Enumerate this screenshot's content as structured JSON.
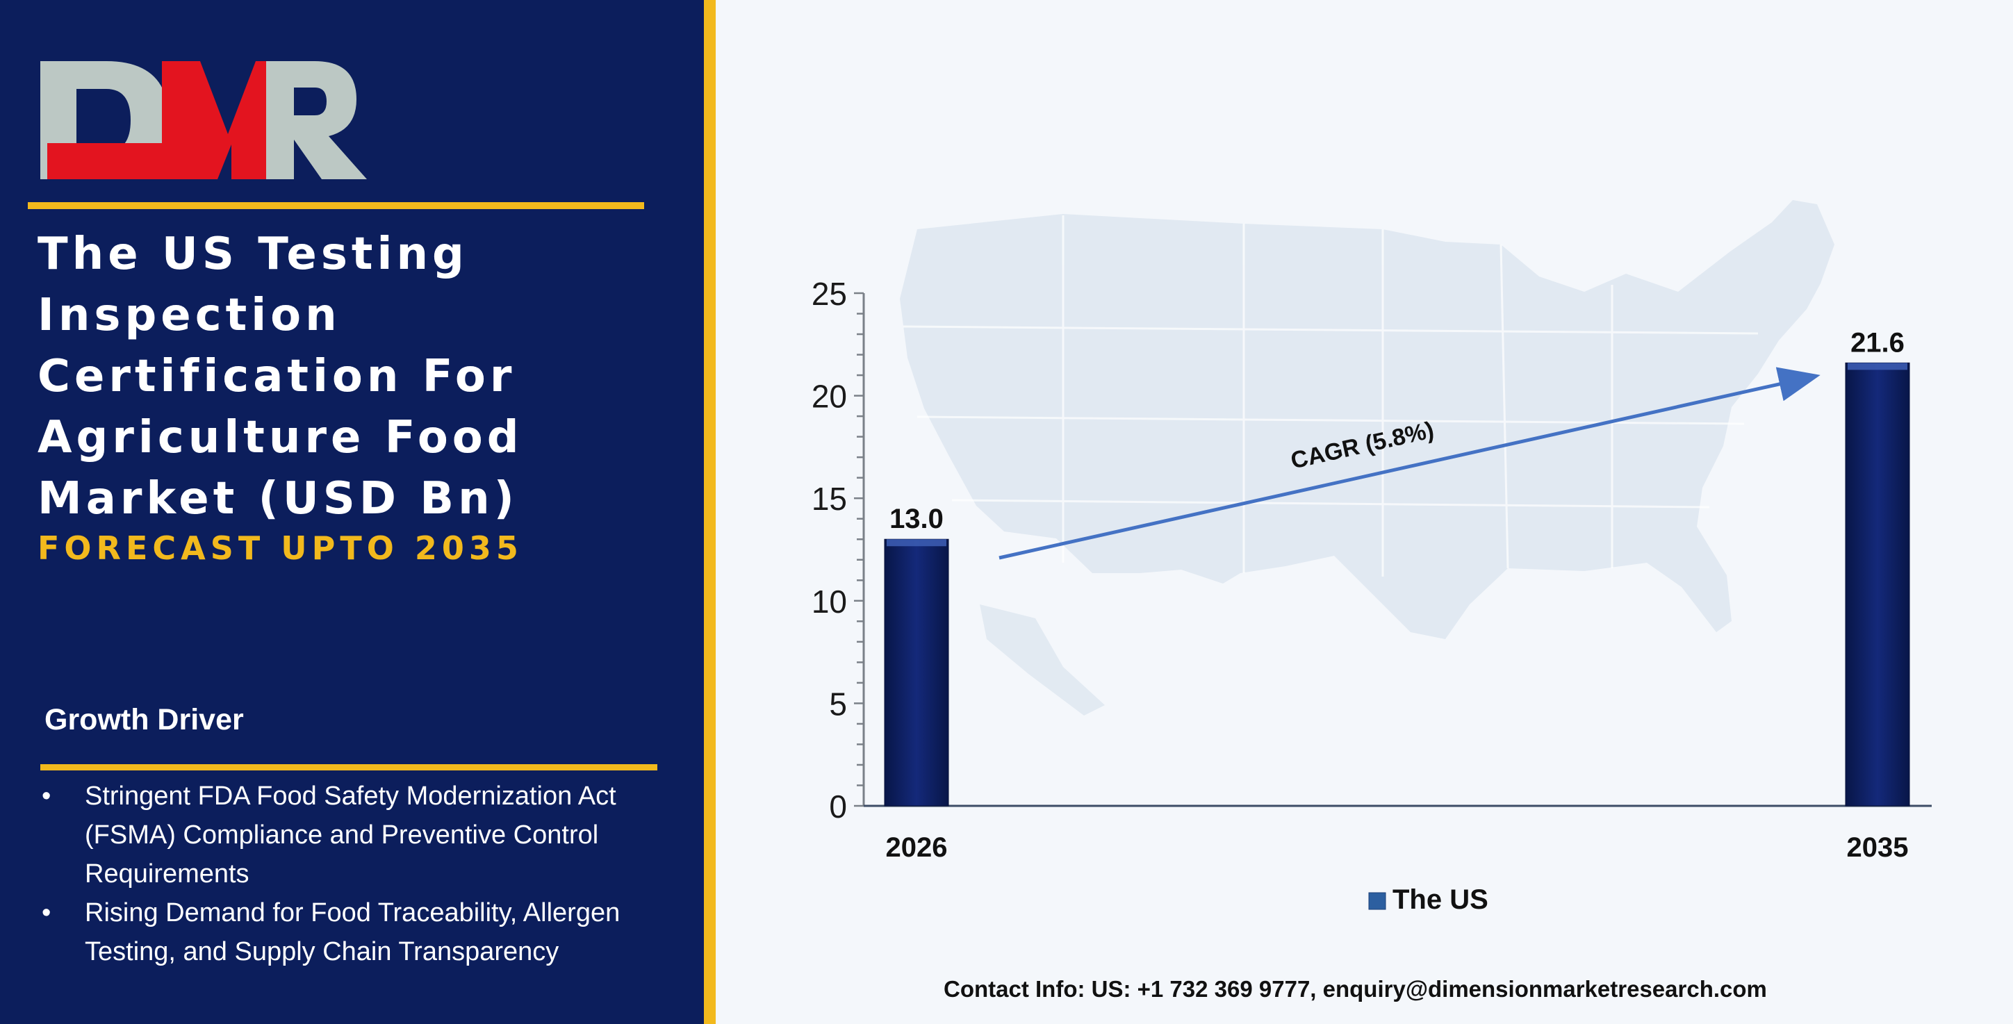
{
  "brand": {
    "logo_text": "DMR",
    "colors": {
      "navy": "#0c1e5c",
      "gold": "#f2b91d",
      "red": "#e3141f",
      "silver": "#bcc8c4"
    }
  },
  "header": {
    "title": "The US Testing\nInspection\nCertification For\nAgriculture Food\nMarket (USD Bn)",
    "subtitle": "FORECAST UPTO 2035"
  },
  "growth_drivers": {
    "heading": "Growth Driver",
    "items": [
      "Stringent FDA Food Safety Modernization Act (FSMA) Compliance and Preventive Control Requirements",
      "Rising Demand for Food Traceability, Allergen Testing, and Supply Chain Transparency"
    ]
  },
  "chart_data": {
    "type": "bar",
    "categories": [
      "2026",
      "2035"
    ],
    "series": [
      {
        "name": "The US",
        "values": [
          13.0,
          21.6
        ],
        "color": "#0c1e5c"
      }
    ],
    "value_labels": [
      "13.0",
      "21.6"
    ],
    "ylim": [
      0,
      25
    ],
    "yticks": [
      0,
      5,
      10,
      15,
      20,
      25
    ],
    "legend_position": "bottom",
    "annotation": {
      "text": "CAGR (5.8%)",
      "color": "#4472c4"
    },
    "background_icon": "us-map-silhouette"
  },
  "footer": {
    "contact": "Contact Info: US: +1 732 369 9777, enquiry@dimensionmarketresearch.com"
  }
}
